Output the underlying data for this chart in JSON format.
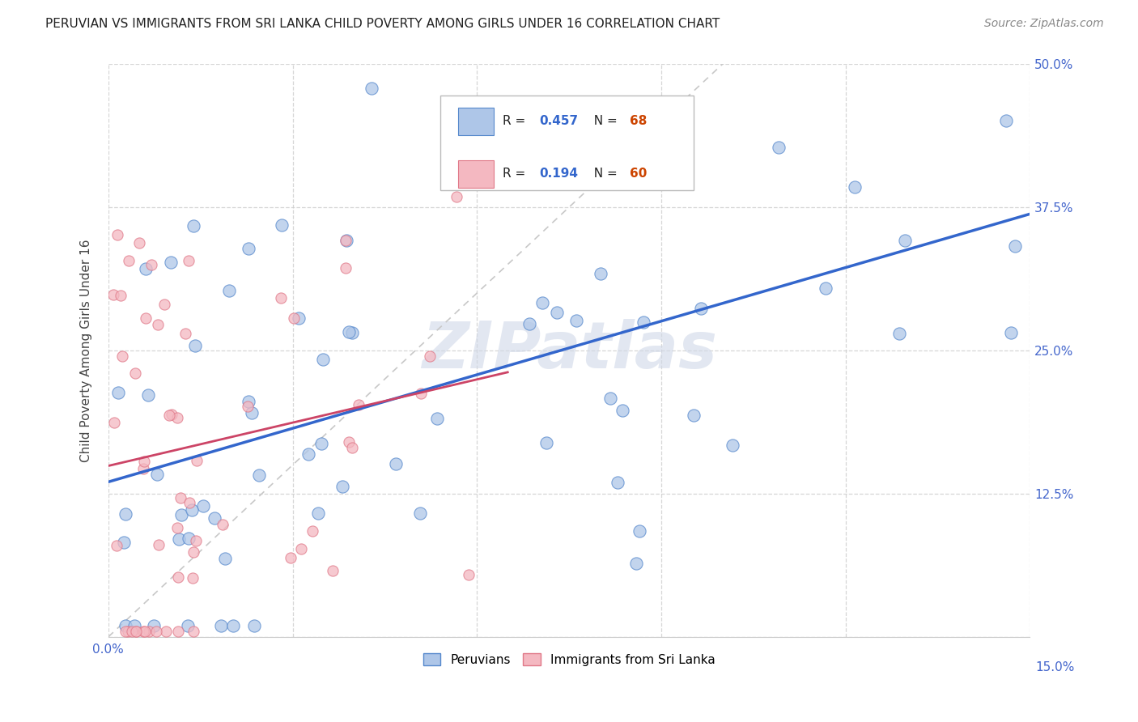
{
  "title": "PERUVIAN VS IMMIGRANTS FROM SRI LANKA CHILD POVERTY AMONG GIRLS UNDER 16 CORRELATION CHART",
  "source": "Source: ZipAtlas.com",
  "ylabel": "Child Poverty Among Girls Under 16",
  "xlim": [
    0.0,
    0.15
  ],
  "ylim": [
    0.0,
    0.5
  ],
  "xtick_vals": [
    0.0,
    0.03,
    0.06,
    0.09,
    0.12,
    0.15
  ],
  "ytick_vals": [
    0.0,
    0.125,
    0.25,
    0.375,
    0.5
  ],
  "watermark": "ZIPatlas",
  "peruvian_color": "#aec6e8",
  "peruvian_edge_color": "#5588cc",
  "srilanka_color": "#f4b8c1",
  "srilanka_edge_color": "#e07888",
  "peruvian_line_color": "#3366cc",
  "srilanka_line_color": "#cc4466",
  "diagonal_line_color": "#c8c8c8",
  "tick_color": "#4466cc",
  "R_peruvian": 0.457,
  "N_peruvian": 68,
  "R_srilanka": 0.194,
  "N_srilanka": 60,
  "peru_intercept": 0.115,
  "peru_slope": 1.6,
  "sri_intercept": 0.11,
  "sri_slope": 2.5
}
